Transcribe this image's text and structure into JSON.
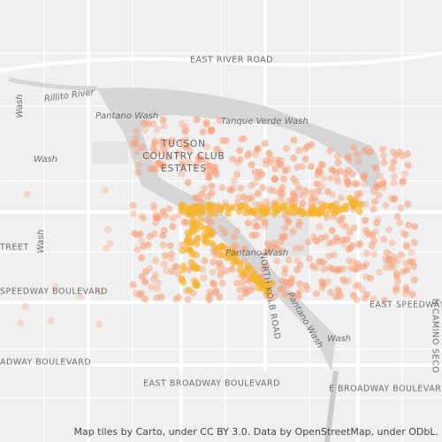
{
  "map": {
    "labels": [
      "EAST RIVER ROAD",
      "Rillito River",
      "Wash",
      "Pantano Wash",
      "Tanque Verde Wash",
      "TUCSON",
      "COUNTRY CLUB",
      "ESTATES",
      "Wash",
      "TREET",
      "Wash",
      "Pantano Wash",
      "SPEEDWAY BOULEVARD",
      "NORTH KOLB ROAD",
      "EAST SPEEDWAY",
      "Pantano Wash",
      "Wash",
      "N CAMINO SECO",
      "ADWAY BOULEVARD",
      "EAST BROADWAY BOULEVARD",
      "E BROADWAY BOULEVARD"
    ],
    "attribution": "Map tiles by Carto, under CC BY 3.0. Data by OpenStreetMap, under ODbL."
  }
}
